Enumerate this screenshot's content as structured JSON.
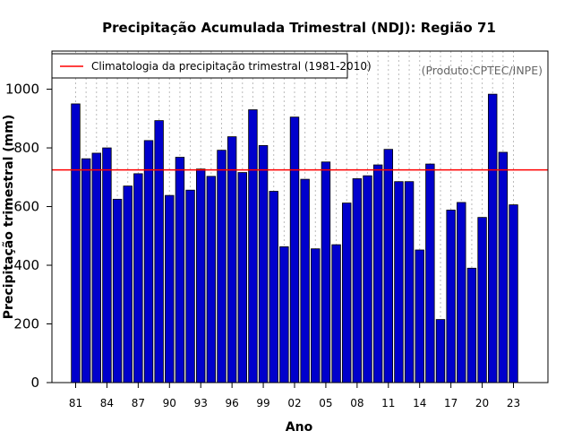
{
  "chart_data": {
    "type": "bar",
    "title": "Precipitação Acumulada Trimestral (NDJ): Região 71",
    "xlabel": "Ano",
    "ylabel": "Precipitação trimestral (mm)",
    "ylim": [
      0,
      1130
    ],
    "yticks": [
      0,
      200,
      400,
      600,
      800,
      1000
    ],
    "xtick_labels": [
      "81",
      "84",
      "87",
      "90",
      "93",
      "96",
      "99",
      "02",
      "05",
      "08",
      "11",
      "14",
      "17",
      "20",
      "23"
    ],
    "categories": [
      "1981",
      "1982",
      "1983",
      "1984",
      "1985",
      "1986",
      "1987",
      "1988",
      "1989",
      "1990",
      "1991",
      "1992",
      "1993",
      "1994",
      "1995",
      "1996",
      "1997",
      "1998",
      "1999",
      "2000",
      "2001",
      "2002",
      "2003",
      "2004",
      "2005",
      "2006",
      "2007",
      "2008",
      "2009",
      "2010",
      "2011",
      "2012",
      "2013",
      "2014",
      "2015",
      "2016",
      "2017",
      "2018",
      "2019",
      "2020",
      "2021",
      "2022",
      "2023"
    ],
    "values": [
      950,
      763,
      782,
      800,
      625,
      670,
      712,
      825,
      893,
      638,
      768,
      656,
      728,
      703,
      792,
      838,
      716,
      930,
      808,
      652,
      463,
      905,
      693,
      456,
      752,
      470,
      612,
      695,
      705,
      742,
      795,
      685,
      685,
      452,
      745,
      215,
      588,
      614,
      390,
      563,
      983,
      785,
      606
    ],
    "climatology": 725,
    "legend": "Climatologia da precipitação trimestral (1981-2010)",
    "legend_position": "top-left",
    "source_note": "(Produto:CPTEC/INPE)",
    "grid": "vertical dotted",
    "colors": {
      "bar_fill": "#0000CC",
      "bar_edge": "#000000",
      "climatology_line": "#FF0000",
      "grid": "#BBBBBB",
      "source": "#666666"
    }
  }
}
